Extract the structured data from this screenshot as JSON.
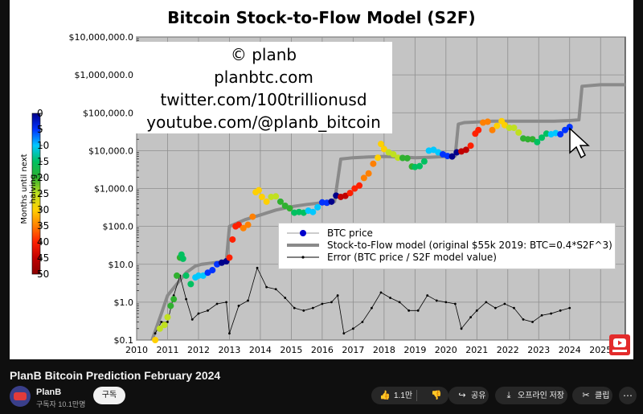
{
  "video": {
    "title": "PlanB Bitcoin Prediction February 2024",
    "channel_name": "PlanB",
    "subscribers": "구독자 10.1만명",
    "subscribe_label": "구독",
    "likes": "1.1만",
    "share_label": "공유",
    "download_label": "오프라인 저장",
    "clip_label": "클립",
    "more_label": "⋯"
  },
  "overlay": {
    "lines": [
      "© planb",
      "planbtc.com",
      "twitter.com/100trillionusd",
      "youtube.com/@planb_bitcoin"
    ]
  },
  "colorbar": {
    "label": "Months until next halving",
    "ticks": [
      "0",
      "5",
      "10",
      "15",
      "20",
      "25",
      "30",
      "35",
      "40",
      "45",
      "50"
    ]
  },
  "chart_data": {
    "type": "scatter",
    "title": "Bitcoin Stock-to-Flow Model (S2F)",
    "xlabel": "",
    "ylabel": "",
    "xlim": [
      2010,
      2025.8
    ],
    "ylim": [
      0.1,
      10000000
    ],
    "yscale": "log",
    "grid": true,
    "legend_position": "lower-right",
    "x_ticks": [
      "2010",
      "2011",
      "2012",
      "2013",
      "2014",
      "2015",
      "2016",
      "2017",
      "2018",
      "2019",
      "2020",
      "2021",
      "2022",
      "2023",
      "2024",
      "2025"
    ],
    "y_ticks": [
      {
        "value": 10000000,
        "label": "$10,000,000.0"
      },
      {
        "value": 1000000,
        "label": "$1,000,000.0"
      },
      {
        "value": 100000,
        "label": "$100,000.0"
      },
      {
        "value": 10000,
        "label": "$10,000.0"
      },
      {
        "value": 1000,
        "label": "$1,000.0"
      },
      {
        "value": 100,
        "label": "$100.0"
      },
      {
        "value": 10,
        "label": "$10.0"
      },
      {
        "value": 1,
        "label": "$1.0"
      },
      {
        "value": 0.1,
        "label": "$0.1"
      }
    ],
    "series": [
      {
        "name": "BTC price",
        "color_by": "months until next halving",
        "x": [
          2010.6,
          2010.75,
          2010.9,
          2011.0,
          2011.1,
          2011.2,
          2011.3,
          2011.4,
          2011.45,
          2011.5,
          2011.6,
          2011.75,
          2011.9,
          2012.0,
          2012.15,
          2012.3,
          2012.45,
          2012.6,
          2012.75,
          2012.9,
          2013.0,
          2013.1,
          2013.2,
          2013.3,
          2013.45,
          2013.6,
          2013.75,
          2013.85,
          2013.95,
          2014.05,
          2014.2,
          2014.35,
          2014.5,
          2014.65,
          2014.8,
          2014.95,
          2015.1,
          2015.25,
          2015.4,
          2015.55,
          2015.7,
          2015.85,
          2016.0,
          2016.15,
          2016.3,
          2016.45,
          2016.6,
          2016.75,
          2016.9,
          2017.05,
          2017.2,
          2017.35,
          2017.5,
          2017.65,
          2017.8,
          2017.9,
          2018.0,
          2018.15,
          2018.3,
          2018.45,
          2018.6,
          2018.75,
          2018.9,
          2019.0,
          2019.15,
          2019.3,
          2019.45,
          2019.6,
          2019.75,
          2019.9,
          2020.05,
          2020.2,
          2020.35,
          2020.5,
          2020.65,
          2020.8,
          2020.95,
          2021.05,
          2021.2,
          2021.35,
          2021.5,
          2021.65,
          2021.8,
          2021.9,
          2022.05,
          2022.2,
          2022.35,
          2022.5,
          2022.65,
          2022.8,
          2022.95,
          2023.1,
          2023.25,
          2023.4,
          2023.55,
          2023.7,
          2023.85,
          2024.0
        ],
        "y": [
          0.06,
          0.2,
          0.25,
          0.4,
          0.8,
          1.2,
          5,
          15,
          18,
          14,
          5,
          3,
          4.5,
          5,
          5,
          6,
          7,
          10,
          11,
          12,
          15,
          45,
          100,
          110,
          90,
          110,
          180,
          800,
          900,
          600,
          450,
          600,
          620,
          450,
          350,
          300,
          230,
          240,
          230,
          260,
          240,
          320,
          430,
          420,
          450,
          650,
          600,
          640,
          760,
          1000,
          1200,
          1900,
          2500,
          4500,
          6500,
          15000,
          11000,
          9000,
          8000,
          6500,
          6400,
          6300,
          3800,
          3700,
          3900,
          5200,
          10000,
          10500,
          9000,
          8000,
          7200,
          7000,
          9000,
          9500,
          10500,
          13500,
          28000,
          35000,
          55000,
          58000,
          35000,
          45000,
          60000,
          47000,
          40000,
          40000,
          30000,
          21000,
          20000,
          20000,
          16800,
          22000,
          28000,
          27000,
          29000,
          27000,
          35000,
          42000
        ]
      },
      {
        "name": "Stock-to-Flow model (original $55k 2019:  BTC=0.4*S2F^3)",
        "x": [
          2010.5,
          2010.8,
          2011.0,
          2011.3,
          2011.6,
          2011.9,
          2012.1,
          2012.5,
          2012.9,
          2013.0,
          2013.5,
          2014.0,
          2014.5,
          2015.0,
          2015.5,
          2016.0,
          2016.4,
          2016.6,
          2017.0,
          2017.5,
          2018.0,
          2018.5,
          2019.0,
          2019.5,
          2020.0,
          2020.3,
          2020.4,
          2020.6,
          2021.0,
          2021.5,
          2022.0,
          2022.5,
          2023.0,
          2023.5,
          2024.0,
          2024.3,
          2024.4,
          2025.0,
          2025.8
        ],
        "y": [
          0.1,
          0.5,
          1.5,
          3,
          6,
          9,
          10,
          11,
          12,
          100,
          150,
          200,
          270,
          330,
          380,
          420,
          450,
          6000,
          6500,
          6800,
          7000,
          6800,
          6500,
          6700,
          7000,
          7200,
          50000,
          55000,
          57000,
          60000,
          60000,
          60000,
          60000,
          60000,
          62000,
          65000,
          500000,
          550000,
          550000
        ]
      },
      {
        "name": "Error (BTC price / S2F model value)",
        "x": [
          2010.6,
          2010.8,
          2011.0,
          2011.2,
          2011.4,
          2011.6,
          2011.8,
          2012.0,
          2012.3,
          2012.6,
          2012.9,
          2013.0,
          2013.3,
          2013.6,
          2013.9,
          2014.2,
          2014.5,
          2014.8,
          2015.1,
          2015.4,
          2015.7,
          2016.0,
          2016.3,
          2016.5,
          2016.7,
          2017.0,
          2017.3,
          2017.6,
          2017.9,
          2018.2,
          2018.5,
          2018.8,
          2019.1,
          2019.4,
          2019.7,
          2020.0,
          2020.3,
          2020.5,
          2020.8,
          2021.0,
          2021.3,
          2021.6,
          2021.9,
          2022.2,
          2022.5,
          2022.8,
          2023.1,
          2023.4,
          2023.7,
          2024.0
        ],
        "y": [
          0.15,
          0.3,
          0.3,
          1.5,
          5,
          1.2,
          0.35,
          0.5,
          0.6,
          0.9,
          1.0,
          0.15,
          0.8,
          1.1,
          8,
          2.5,
          2.2,
          1.3,
          0.7,
          0.6,
          0.7,
          0.9,
          1.0,
          1.5,
          0.15,
          0.2,
          0.3,
          0.7,
          1.8,
          1.3,
          1.0,
          0.6,
          0.6,
          1.5,
          1.1,
          1.0,
          0.9,
          0.2,
          0.4,
          0.6,
          1.0,
          0.7,
          0.9,
          0.7,
          0.35,
          0.3,
          0.45,
          0.5,
          0.6,
          0.7
        ]
      }
    ]
  }
}
